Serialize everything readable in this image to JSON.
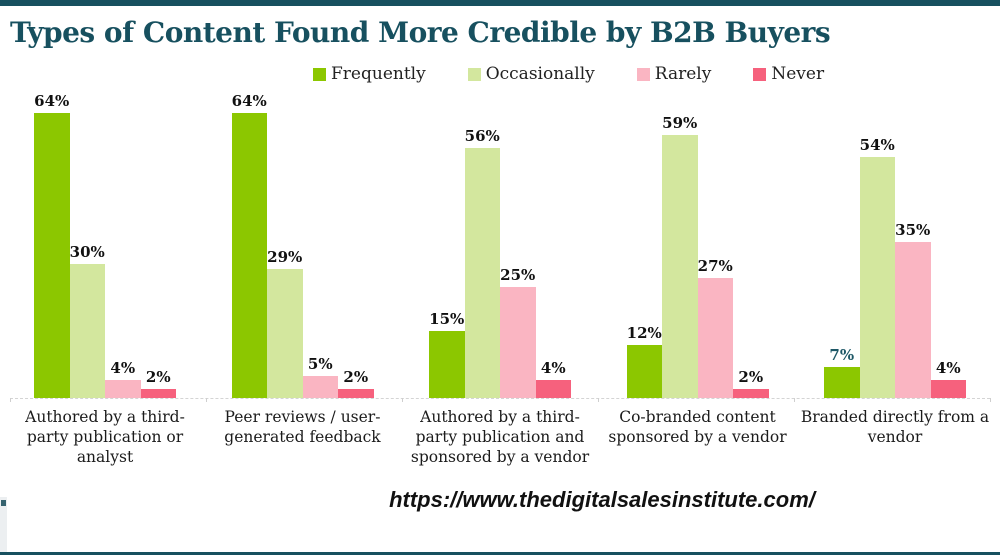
{
  "page": {
    "title": "Types of Content Found More Credible by B2B Buyers",
    "footer_url": "https://www.thedigitalsalesinstitute.com/",
    "accent_color": "#17505F"
  },
  "chart_data": {
    "type": "bar",
    "title": "Types of Content Found More Credible by B2B Buyers",
    "categories": [
      "Authored by a third-party publication or analyst",
      "Peer reviews / user-generated feedback",
      "Authored by a third-party publication and sponsored by a vendor",
      "Co-branded content sponsored by a vendor",
      "Branded directly from a vendor"
    ],
    "series": [
      {
        "name": "Frequently",
        "color": "#8CC700",
        "values": [
          64,
          64,
          15,
          12,
          7
        ]
      },
      {
        "name": "Occasionally",
        "color": "#D3E79E",
        "values": [
          30,
          29,
          56,
          59,
          54
        ]
      },
      {
        "name": "Rarely",
        "color": "#FAB5C2",
        "values": [
          4,
          5,
          25,
          27,
          35
        ]
      },
      {
        "name": "Never",
        "color": "#F6617D",
        "values": [
          2,
          2,
          4,
          2,
          4
        ]
      }
    ],
    "value_suffix": "%",
    "ylim": [
      0,
      70
    ],
    "grid": false,
    "legend_position": "top",
    "axis_line": "dashed",
    "special_label": {
      "series_index": 0,
      "category_index": 4,
      "color": "#1D5766"
    }
  }
}
